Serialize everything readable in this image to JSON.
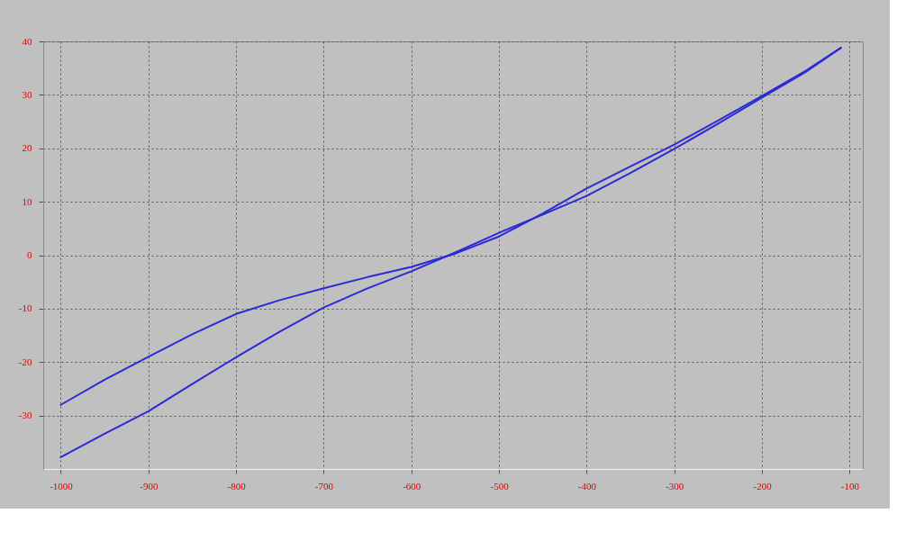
{
  "chart_data": {
    "type": "line",
    "xlim": [
      -1020,
      -85
    ],
    "ylim": [
      -40,
      40
    ],
    "xticks": [
      {
        "value": -1000,
        "label": "-1000"
      },
      {
        "value": -900,
        "label": "-900"
      },
      {
        "value": -800,
        "label": "-800"
      },
      {
        "value": -700,
        "label": "-700"
      },
      {
        "value": -600,
        "label": "-600"
      },
      {
        "value": -500,
        "label": "-500"
      },
      {
        "value": -400,
        "label": "-400"
      },
      {
        "value": -300,
        "label": "-300"
      },
      {
        "value": -200,
        "label": "-200"
      },
      {
        "value": -100,
        "label": "-100"
      }
    ],
    "yticks": [
      {
        "value": -30,
        "label": "-30"
      },
      {
        "value": -20,
        "label": "-20"
      },
      {
        "value": -10,
        "label": "-10"
      },
      0,
      10,
      20,
      30,
      40
    ],
    "grid": true,
    "line_style": "solid",
    "marker": "none",
    "series": [
      {
        "color": "#2a2ad6",
        "x": [
          -1000,
          -950,
          -900,
          -850,
          -800,
          -750,
          -700,
          -650,
          -600,
          -550,
          -500,
          -450,
          -400,
          -350,
          -300,
          -250,
          -200,
          -150,
          -110
        ],
        "values": [
          -28,
          -23.3,
          -19,
          -14.8,
          -11,
          -8.4,
          -6.2,
          -4.1,
          -2.2,
          0.3,
          3.5,
          7.8,
          12.5,
          16.6,
          20.7,
          25.2,
          29.8,
          34.5,
          38.8
        ]
      },
      {
        "color": "#2a2ad6",
        "x": [
          -1000,
          -950,
          -900,
          -850,
          -800,
          -750,
          -700,
          -650,
          -600,
          -550,
          -500,
          -450,
          -400,
          -350,
          -300,
          -250,
          -200,
          -150,
          -110
        ],
        "values": [
          -37.8,
          -33.4,
          -29.2,
          -24.1,
          -19.1,
          -14.3,
          -9.8,
          -6.2,
          -3,
          0.5,
          4.2,
          7.6,
          11.1,
          15.4,
          19.9,
          24.6,
          29.5,
          34.3,
          38.8
        ]
      }
    ]
  }
}
